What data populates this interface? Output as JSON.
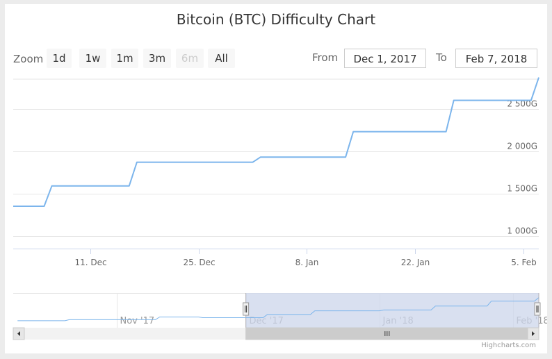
{
  "chart_data": {
    "type": "line",
    "title": "Bitcoin (BTC) Difficulty Chart",
    "x_range": [
      "2017-12-01",
      "2018-02-07"
    ],
    "y_range": [
      850,
      2850
    ],
    "y_ticks": [
      {
        "value": 1000,
        "label": "1 000G"
      },
      {
        "value": 1500,
        "label": "1 500G"
      },
      {
        "value": 2000,
        "label": "2 000G"
      },
      {
        "value": 2500,
        "label": "2 500G"
      }
    ],
    "x_ticks": [
      {
        "date": "2017-12-11",
        "label": "11. Dec"
      },
      {
        "date": "2017-12-25",
        "label": "25. Dec"
      },
      {
        "date": "2018-01-08",
        "label": "8. Jan"
      },
      {
        "date": "2018-01-22",
        "label": "22. Jan"
      },
      {
        "date": "2018-02-05",
        "label": "5. Feb"
      }
    ],
    "series": [
      {
        "color": "#7cb5ec",
        "points": [
          [
            "2017-12-01",
            1350
          ],
          [
            "2017-12-05",
            1350
          ],
          [
            "2017-12-06",
            1590
          ],
          [
            "2017-12-16",
            1590
          ],
          [
            "2017-12-17",
            1870
          ],
          [
            "2018-01-01",
            1870
          ],
          [
            "2018-01-02",
            1930
          ],
          [
            "2018-01-13",
            1930
          ],
          [
            "2018-01-14",
            2230
          ],
          [
            "2018-01-26",
            2230
          ],
          [
            "2018-01-27",
            2600
          ],
          [
            "2018-02-06",
            2600
          ],
          [
            "2018-02-07",
            2870
          ]
        ]
      }
    ],
    "grid": true,
    "legend": false
  },
  "navigator": {
    "range": [
      "2017-10-08",
      "2018-02-07"
    ],
    "selected": [
      "2017-12-01",
      "2018-02-07"
    ],
    "labels": [
      {
        "date": "2017-11-01",
        "label": "Nov '17"
      },
      {
        "date": "2017-12-01",
        "label": "Dec '17"
      },
      {
        "date": "2018-01-01",
        "label": "Jan '18"
      },
      {
        "date": "2018-02-01",
        "label": "Feb '18"
      }
    ],
    "points": [
      [
        "2017-10-09",
        1120
      ],
      [
        "2017-10-20",
        1120
      ],
      [
        "2017-10-21",
        1200
      ],
      [
        "2017-11-10",
        1200
      ],
      [
        "2017-11-11",
        1400
      ],
      [
        "2017-11-20",
        1400
      ],
      [
        "2017-11-21",
        1350
      ],
      [
        "2017-12-05",
        1350
      ],
      [
        "2017-12-06",
        1590
      ],
      [
        "2017-12-16",
        1590
      ],
      [
        "2017-12-17",
        1870
      ],
      [
        "2018-01-01",
        1870
      ],
      [
        "2018-01-02",
        1930
      ],
      [
        "2018-01-13",
        1930
      ],
      [
        "2018-01-14",
        2230
      ],
      [
        "2018-01-26",
        2230
      ],
      [
        "2018-01-27",
        2600
      ],
      [
        "2018-02-06",
        2600
      ],
      [
        "2018-02-07",
        2870
      ]
    ]
  },
  "range_selector": {
    "zoom_label": "Zoom",
    "buttons": [
      {
        "label": "1d",
        "enabled": true
      },
      {
        "label": "1w",
        "enabled": true
      },
      {
        "label": "1m",
        "enabled": true
      },
      {
        "label": "3m",
        "enabled": true
      },
      {
        "label": "6m",
        "enabled": false
      },
      {
        "label": "All",
        "enabled": true
      }
    ],
    "from_label": "From",
    "from_value": "Dec 1, 2017",
    "to_label": "To",
    "to_value": "Feb 7, 2018"
  },
  "credits": "Highcharts.com",
  "colors": {
    "line": "#7cb5ec",
    "mask": "#ccd6eb",
    "grid": "#e6e6e6"
  }
}
